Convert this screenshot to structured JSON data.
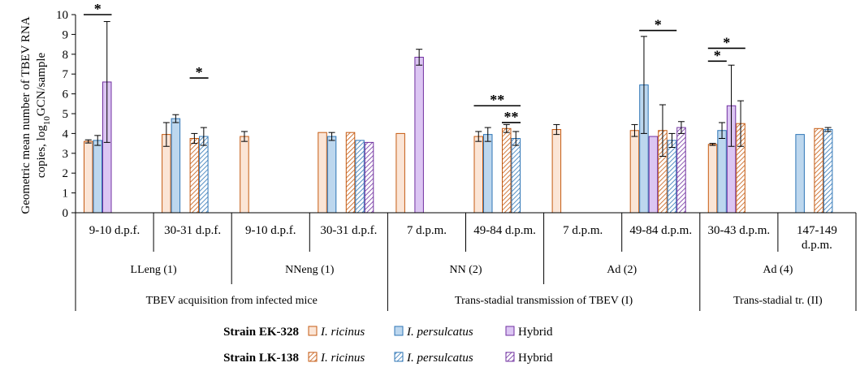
{
  "chart_data": {
    "type": "bar",
    "ylabel_line1": "Geometric mean number of TBEV RNA",
    "ylabel_line2_pre": "copies, log",
    "ylabel_line2_sub": "10",
    "ylabel_line2_post": "GCN/sample",
    "ylim": [
      0,
      10
    ],
    "yticks": [
      0,
      1,
      2,
      3,
      4,
      5,
      6,
      7,
      8,
      9,
      10
    ],
    "grid": false,
    "legend_position": "bottom",
    "categories": [
      {
        "label": "9-10 d.p.f.",
        "values": [
          3.6,
          3.65,
          6.6,
          null,
          null,
          null
        ],
        "err": [
          0.08,
          0.25,
          3.05,
          null,
          null,
          null
        ]
      },
      {
        "label": "30-31 d.p.f.",
        "values": [
          3.95,
          4.75,
          null,
          3.75,
          3.85,
          null
        ],
        "err": [
          0.6,
          0.2,
          null,
          0.25,
          0.45,
          null
        ]
      },
      {
        "label": "9-10 d.p.f.",
        "values": [
          3.85,
          null,
          null,
          null,
          null,
          null
        ],
        "err": [
          0.25,
          null,
          null,
          null,
          null,
          null
        ]
      },
      {
        "label": "30-31 d.p.f.",
        "values": [
          4.05,
          3.85,
          null,
          4.05,
          3.65,
          3.55
        ],
        "err": [
          null,
          0.2,
          null,
          null,
          null,
          null
        ]
      },
      {
        "label": "7 d.p.m.",
        "values": [
          4.0,
          null,
          7.85,
          null,
          null,
          null
        ],
        "err": [
          null,
          null,
          0.4,
          null,
          null,
          null
        ]
      },
      {
        "label": "49-84 d.p.m.",
        "values": [
          3.85,
          3.95,
          null,
          4.25,
          3.75,
          null
        ],
        "err": [
          0.25,
          0.35,
          null,
          0.2,
          0.35,
          null
        ]
      },
      {
        "label": "7 d.p.m.",
        "values": [
          4.2,
          null,
          null,
          null,
          null,
          null
        ],
        "err": [
          0.25,
          null,
          null,
          null,
          null,
          null
        ]
      },
      {
        "label": "49-84 d.p.m.",
        "values": [
          4.15,
          6.45,
          3.85,
          4.15,
          3.65,
          4.3
        ],
        "err": [
          0.3,
          2.45,
          null,
          1.3,
          0.35,
          0.3
        ]
      },
      {
        "label": "30-43 d.p.m.",
        "values": [
          3.45,
          4.15,
          5.4,
          4.5,
          null,
          null
        ],
        "err": [
          0.05,
          0.4,
          2.05,
          1.15,
          null,
          null
        ]
      },
      {
        "label_line1": "147-149",
        "label_line2": "d.p.m.",
        "values": [
          null,
          3.95,
          null,
          4.25,
          4.2,
          null
        ],
        "err": [
          null,
          null,
          null,
          null,
          0.1,
          null
        ]
      }
    ],
    "group_labels": [
      {
        "label": "LLeng (1)",
        "from": 0,
        "to": 1
      },
      {
        "label": "NNeng (1)",
        "from": 2,
        "to": 3
      },
      {
        "label": "NN (2)",
        "from": 4,
        "to": 5
      },
      {
        "label": "Ad (2)",
        "from": 6,
        "to": 7
      },
      {
        "label": "Ad (4)",
        "from": 8,
        "to": 9
      }
    ],
    "section_labels": [
      {
        "label": "TBEV acquisition from infected mice",
        "from": 0,
        "to": 3
      },
      {
        "label": "Trans-stadial transmission of TBEV (I)",
        "from": 4,
        "to": 7
      },
      {
        "label": "Trans-stadial tr. (II)",
        "from": 8,
        "to": 9
      }
    ],
    "series": [
      {
        "strain": "EK-328",
        "species": "I. ricinus",
        "fill": "#fbe5d6",
        "stroke": "#c55a11",
        "pattern": "solid"
      },
      {
        "strain": "EK-328",
        "species": "I. persulcatus",
        "fill": "#bdd7ee",
        "stroke": "#2e75b6",
        "pattern": "solid"
      },
      {
        "strain": "EK-328",
        "species": "Hybrid",
        "fill": "#dcc6f3",
        "stroke": "#7030a0",
        "pattern": "solid"
      },
      {
        "strain": "LK-138",
        "species": "I. ricinus",
        "fill": "#fbe5d6",
        "stroke": "#c55a11",
        "pattern": "hatched"
      },
      {
        "strain": "LK-138",
        "species": "I. persulcatus",
        "fill": "#bdd7ee",
        "stroke": "#2e75b6",
        "pattern": "hatched"
      },
      {
        "strain": "LK-138",
        "species": "Hybrid",
        "fill": "#dcc6f3",
        "stroke": "#7030a0",
        "pattern": "hatched"
      }
    ],
    "legend_rows": [
      {
        "label": "Strain EK-328",
        "items": [
          "I. ricinus",
          "I. persulcatus",
          "Hybrid"
        ]
      },
      {
        "label": "Strain LK-138",
        "items": [
          "I. ricinus",
          "I. persulcatus",
          "Hybrid"
        ]
      }
    ],
    "significance": [
      {
        "label": "*",
        "left": [
          0,
          0
        ],
        "right": [
          0,
          2
        ],
        "y": 10.0
      },
      {
        "label": "*",
        "left": [
          1,
          3
        ],
        "right": [
          1,
          4
        ],
        "y": 6.8
      },
      {
        "label": "**",
        "left": [
          5,
          0
        ],
        "right": [
          5,
          4
        ],
        "y": 5.4
      },
      {
        "label": "**",
        "left": [
          5,
          3
        ],
        "right": [
          5,
          4
        ],
        "y": 4.55
      },
      {
        "label": "*",
        "left": [
          7,
          1
        ],
        "right": [
          7,
          4
        ],
        "y": 9.2
      },
      {
        "label": "*",
        "left": [
          8,
          0
        ],
        "right": [
          8,
          3
        ],
        "y": 8.3
      },
      {
        "label": "*",
        "left": [
          8,
          0
        ],
        "right": [
          8,
          1
        ],
        "y": 7.65
      }
    ]
  }
}
